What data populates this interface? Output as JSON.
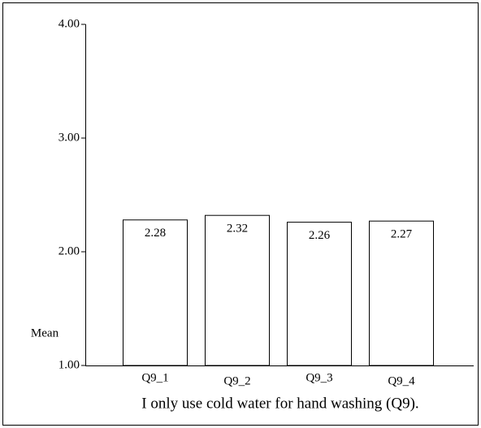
{
  "chart_data": {
    "type": "bar",
    "categories": [
      "Q9_1",
      "Q9_2",
      "Q9_3",
      "Q9_4"
    ],
    "values": [
      2.28,
      2.32,
      2.26,
      2.27
    ],
    "color": "#ffffff",
    "ylim": [
      1,
      4
    ],
    "yticks": [
      {
        "value": 1,
        "label": "1.00"
      },
      {
        "value": 2,
        "label": "2.00"
      },
      {
        "value": 3,
        "label": "3.00"
      },
      {
        "value": 4,
        "label": "4.00"
      }
    ],
    "ylabel": "Mean",
    "xlabel": "I only use cold water for hand washing (Q9).",
    "grid": false
  }
}
